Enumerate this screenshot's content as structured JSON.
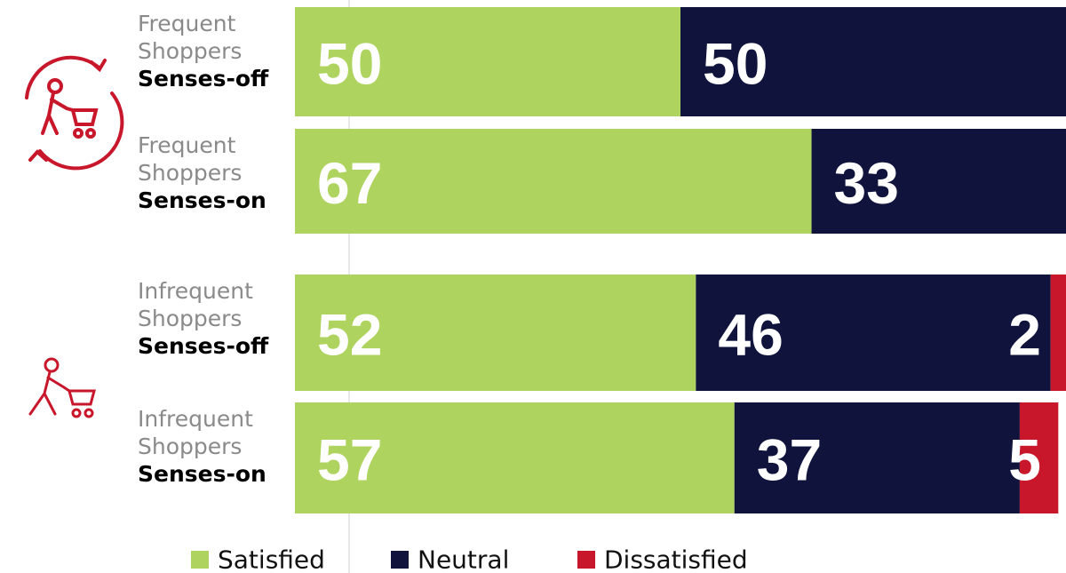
{
  "chart_data": {
    "type": "stacked-bar-horizontal",
    "groups": [
      "Frequent Shoppers",
      "Frequent Shoppers",
      "Infrequent Shoppers",
      "Infrequent Shoppers"
    ],
    "categories": [
      "Senses-off",
      "Senses-on",
      "Senses-off",
      "Senses-on"
    ],
    "xlim": [
      0,
      100
    ],
    "series": [
      {
        "name": "Satisfied",
        "color": "#afd35f",
        "values": [
          50,
          67,
          52,
          57
        ]
      },
      {
        "name": "Neutral",
        "color": "#10143c",
        "values": [
          50,
          33,
          46,
          37
        ]
      },
      {
        "name": "Dissatisfied",
        "color": "#c8162b",
        "values": [
          null,
          null,
          2,
          5
        ]
      }
    ]
  }
}
